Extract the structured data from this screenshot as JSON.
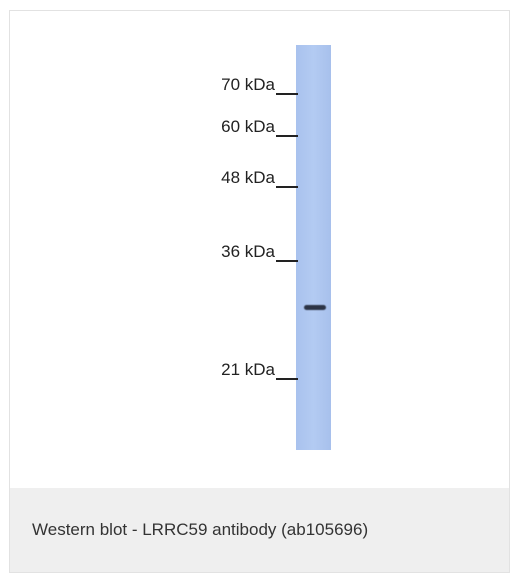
{
  "blot": {
    "markers": [
      "70 kDa",
      "60 kDa",
      "48 kDa",
      "36 kDa",
      "21 kDa"
    ]
  },
  "caption": "Western blot - LRRC59 antibody (ab105696)"
}
